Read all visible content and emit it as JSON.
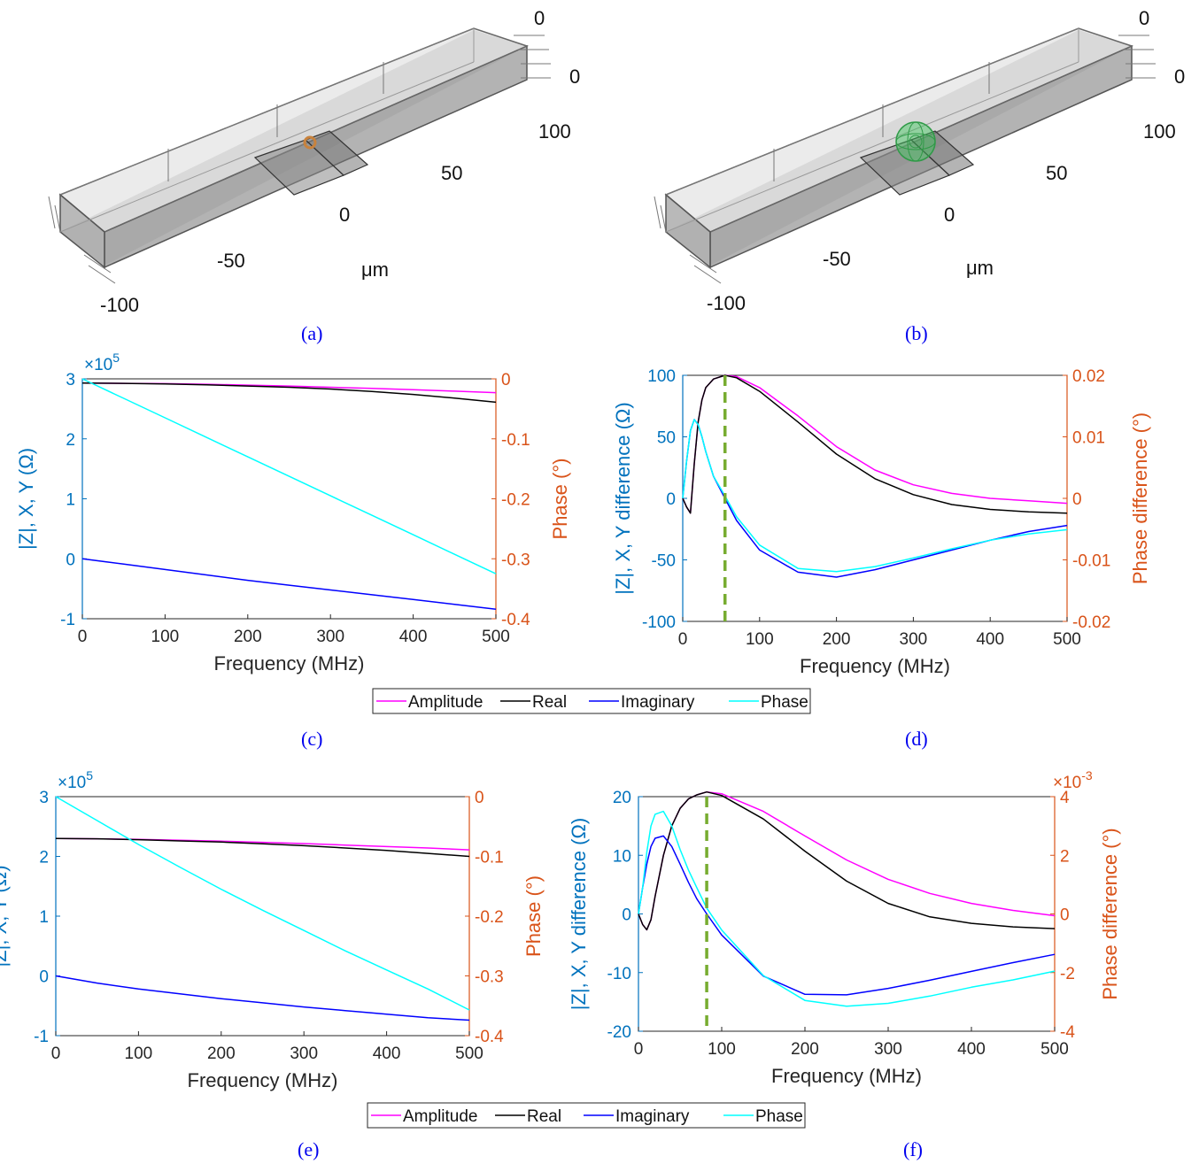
{
  "colors": {
    "left_axis": "#0072BD",
    "right_axis": "#D95319",
    "amplitude": "#FF00FF",
    "real": "#000000",
    "imaginary": "#0000FF",
    "phase": "#00FFFF",
    "marker": "#77AC30",
    "caption": "#0000EE"
  },
  "captions": {
    "a": "(a)",
    "b": "(b)",
    "c": "(c)",
    "d": "(d)",
    "e": "(e)",
    "f": "(f)"
  },
  "geometry_views": {
    "a": {
      "tick_labels": [
        "0",
        "0",
        "100",
        "50",
        "0",
        "-50",
        "-100"
      ],
      "unit": "μm",
      "inclusion_color": "#C8823C"
    },
    "b": {
      "tick_labels": [
        "0",
        "0",
        "100",
        "50",
        "0",
        "-50",
        "-100"
      ],
      "unit": "μm",
      "inclusion_color": "#3CC85A"
    }
  },
  "legend": {
    "items": [
      "Amplitude",
      "Real",
      "Imaginary",
      "Phase"
    ]
  },
  "chart_data": [
    {
      "id": "c",
      "type": "line",
      "xlabel": "Frequency (MHz)",
      "ylabel": "|Z|, X, Y (Ω)",
      "y2label": "Phase (°)",
      "xlim": [
        0,
        500
      ],
      "ylim": [
        -1,
        3
      ],
      "y2lim": [
        -0.4,
        0
      ],
      "xticks": [
        "0",
        "100",
        "200",
        "300",
        "400",
        "500"
      ],
      "yticks": [
        "-1",
        "0",
        "1",
        "2",
        "3"
      ],
      "y2ticks": [
        "-0.4",
        "-0.3",
        "-0.2",
        "-0.1",
        "0"
      ],
      "y_exponent_label": "×10",
      "y_exponent_power": "5",
      "x": [
        0,
        50,
        100,
        150,
        200,
        250,
        300,
        350,
        400,
        450,
        500
      ],
      "series": [
        {
          "name": "Amplitude",
          "axis": "left",
          "values": [
            2.93,
            2.925,
            2.92,
            2.91,
            2.895,
            2.88,
            2.86,
            2.84,
            2.82,
            2.795,
            2.77
          ]
        },
        {
          "name": "Real",
          "axis": "left",
          "values": [
            2.93,
            2.925,
            2.915,
            2.9,
            2.88,
            2.86,
            2.83,
            2.79,
            2.74,
            2.68,
            2.61
          ]
        },
        {
          "name": "Imaginary",
          "axis": "left",
          "values": [
            0,
            -0.09,
            -0.18,
            -0.27,
            -0.36,
            -0.44,
            -0.52,
            -0.6,
            -0.68,
            -0.76,
            -0.84
          ]
        },
        {
          "name": "Phase",
          "axis": "right",
          "values": [
            0,
            -0.0325,
            -0.065,
            -0.0975,
            -0.13,
            -0.1625,
            -0.195,
            -0.2275,
            -0.26,
            -0.2925,
            -0.325
          ]
        }
      ]
    },
    {
      "id": "d",
      "type": "line",
      "xlabel": "Frequency (MHz)",
      "ylabel": "|Z|, X, Y difference (Ω)",
      "y2label": "Phase difference (°)",
      "xlim": [
        0,
        500
      ],
      "ylim": [
        -100,
        100
      ],
      "y2lim": [
        -0.02,
        0.02
      ],
      "xticks": [
        "0",
        "100",
        "200",
        "300",
        "400",
        "500"
      ],
      "yticks": [
        "-100",
        "-50",
        "0",
        "50",
        "100"
      ],
      "y2ticks": [
        "-0.02",
        "-0.01",
        "0",
        "0.01",
        "0.02"
      ],
      "marker_x": 55,
      "x": [
        0,
        5,
        10,
        15,
        20,
        25,
        30,
        40,
        55,
        70,
        100,
        150,
        200,
        250,
        300,
        350,
        400,
        450,
        500
      ],
      "series": [
        {
          "name": "Amplitude",
          "axis": "left",
          "values": [
            0,
            -7,
            -12,
            28,
            62,
            80,
            90,
            97,
            100,
            99,
            90,
            67,
            42,
            23,
            11,
            4,
            0,
            -2,
            -4
          ]
        },
        {
          "name": "Real",
          "axis": "left",
          "values": [
            0,
            -7,
            -12,
            28,
            62,
            80,
            90,
            97,
            100,
            98,
            87,
            62,
            36,
            16,
            3,
            -5,
            -9,
            -11,
            -12
          ]
        },
        {
          "name": "Imaginary",
          "axis": "left",
          "values": [
            0,
            30,
            55,
            64,
            60,
            50,
            38,
            18,
            0,
            -18,
            -42,
            -60,
            -64,
            -58,
            -50,
            -42,
            -34,
            -27,
            -22
          ]
        },
        {
          "name": "Phase",
          "axis": "right",
          "values": [
            0,
            0.006,
            0.011,
            0.0128,
            0.012,
            0.01,
            0.0076,
            0.0036,
            0.0004,
            -0.003,
            -0.0076,
            -0.0114,
            -0.0119,
            -0.0111,
            -0.0097,
            -0.0082,
            -0.0068,
            -0.0058,
            -0.0051
          ]
        }
      ]
    },
    {
      "id": "e",
      "type": "line",
      "xlabel": "Frequency (MHz)",
      "ylabel": "|Z|, X, Y (Ω)",
      "y2label": "Phase (°)",
      "xlim": [
        0,
        500
      ],
      "ylim": [
        -1,
        3
      ],
      "y2lim": [
        -0.4,
        0
      ],
      "xticks": [
        "0",
        "100",
        "200",
        "300",
        "400",
        "500"
      ],
      "yticks": [
        "-1",
        "0",
        "1",
        "2",
        "3"
      ],
      "y2ticks": [
        "-0.4",
        "-0.3",
        "-0.2",
        "-0.1",
        "0"
      ],
      "y_exponent_label": "×10",
      "y_exponent_power": "5",
      "x": [
        0,
        50,
        100,
        150,
        200,
        250,
        300,
        350,
        400,
        450,
        500
      ],
      "series": [
        {
          "name": "Amplitude",
          "axis": "left",
          "values": [
            2.3,
            2.295,
            2.285,
            2.27,
            2.255,
            2.235,
            2.215,
            2.19,
            2.165,
            2.14,
            2.11
          ]
        },
        {
          "name": "Real",
          "axis": "left",
          "values": [
            2.3,
            2.295,
            2.28,
            2.26,
            2.24,
            2.21,
            2.18,
            2.14,
            2.1,
            2.05,
            2.0
          ]
        },
        {
          "name": "Imaginary",
          "axis": "left",
          "values": [
            0,
            -0.12,
            -0.22,
            -0.3,
            -0.38,
            -0.45,
            -0.52,
            -0.58,
            -0.64,
            -0.7,
            -0.74
          ]
        },
        {
          "name": "Phase",
          "axis": "right",
          "values": [
            0,
            -0.04,
            -0.08,
            -0.118,
            -0.155,
            -0.19,
            -0.224,
            -0.258,
            -0.29,
            -0.322,
            -0.357
          ]
        }
      ]
    },
    {
      "id": "f",
      "type": "line",
      "xlabel": "Frequency (MHz)",
      "ylabel": "|Z|, X, Y difference (Ω)",
      "y2label": "Phase difference (°)",
      "xlim": [
        0,
        500
      ],
      "ylim": [
        -20,
        20
      ],
      "y2lim": [
        -4,
        4
      ],
      "xticks": [
        "0",
        "100",
        "200",
        "300",
        "400",
        "500"
      ],
      "yticks": [
        "-20",
        "-10",
        "0",
        "10",
        "20"
      ],
      "y2ticks": [
        "-4",
        "-2",
        "0",
        "2",
        "4"
      ],
      "y2_exponent_label": "×10",
      "y2_exponent_power": "-3",
      "marker_x": 82,
      "x": [
        0,
        5,
        10,
        15,
        20,
        30,
        40,
        50,
        60,
        70,
        82,
        100,
        150,
        200,
        250,
        300,
        350,
        400,
        450,
        500
      ],
      "series": [
        {
          "name": "Amplitude",
          "axis": "left",
          "values": [
            0,
            -1.8,
            -2.7,
            -1,
            3,
            10,
            15,
            18,
            19.6,
            20.3,
            20.8,
            20.5,
            17.5,
            13.3,
            9.2,
            5.9,
            3.5,
            1.8,
            0.6,
            -0.3
          ]
        },
        {
          "name": "Real",
          "axis": "left",
          "values": [
            0,
            -1.8,
            -2.7,
            -1,
            3,
            10,
            15,
            18,
            19.6,
            20.3,
            20.8,
            20.2,
            16.2,
            10.7,
            5.6,
            1.8,
            -0.5,
            -1.6,
            -2.2,
            -2.5
          ]
        },
        {
          "name": "Imaginary",
          "axis": "left",
          "values": [
            0,
            4.5,
            8.5,
            11.5,
            12.9,
            13.3,
            11.5,
            8.5,
            5.4,
            2.6,
            0,
            -3.6,
            -10.6,
            -13.7,
            -13.8,
            -12.7,
            -11.3,
            -9.8,
            -8.3,
            -6.9
          ]
        },
        {
          "name": "Phase",
          "axis": "right",
          "values": [
            0,
            0.9,
            2.1,
            3.0,
            3.4,
            3.5,
            3.0,
            2.2,
            1.5,
            0.9,
            0.2,
            -0.55,
            -2.1,
            -2.95,
            -3.15,
            -3.05,
            -2.8,
            -2.5,
            -2.25,
            -1.95
          ]
        }
      ]
    }
  ]
}
